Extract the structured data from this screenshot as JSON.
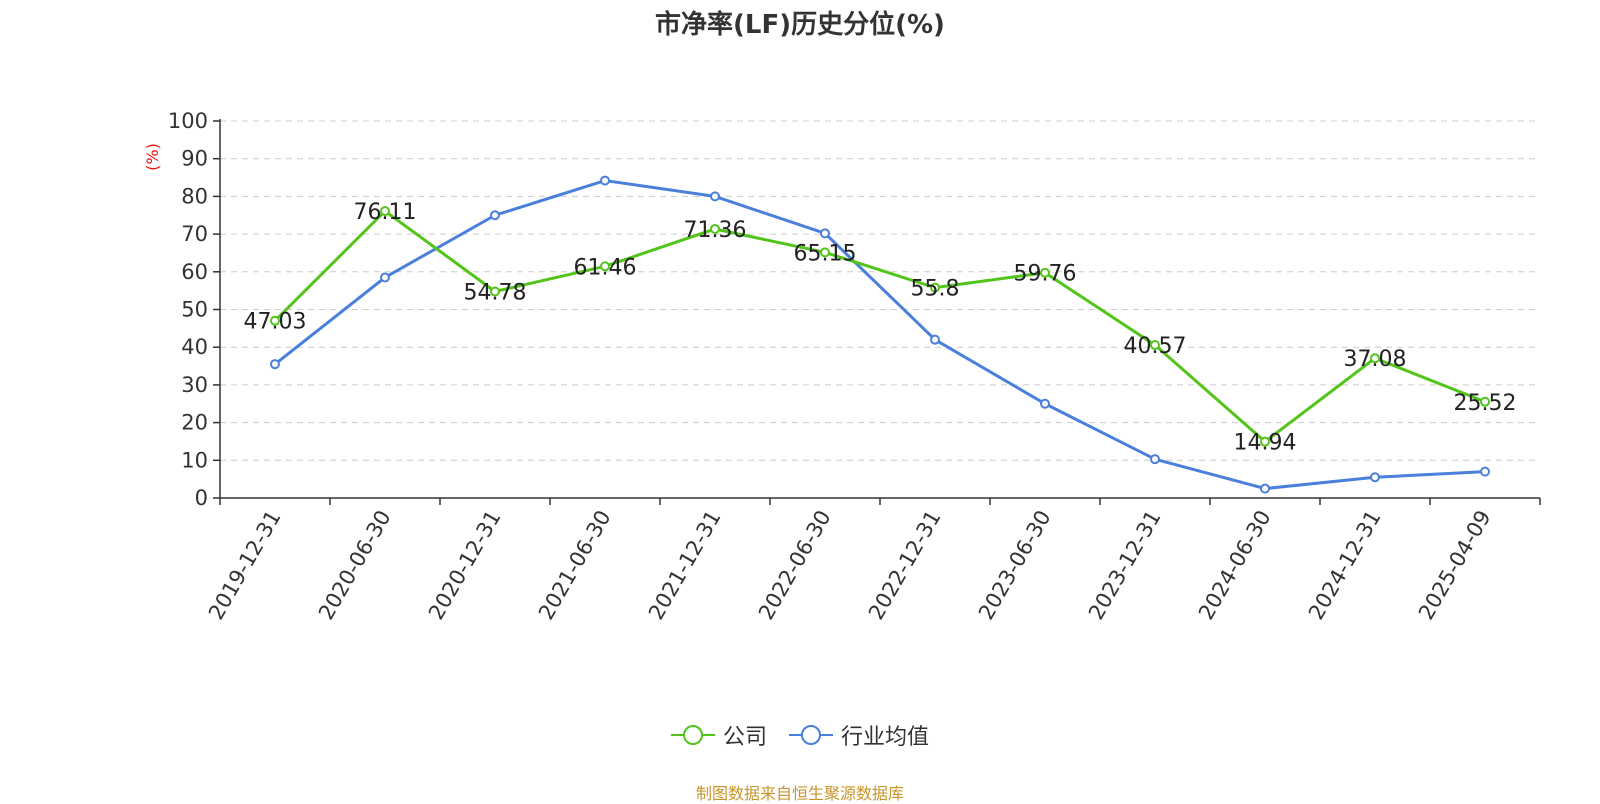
{
  "chart_data": {
    "type": "line",
    "title": "市净率(LF)历史分位(%)",
    "ylabel": "(%)",
    "ylim": [
      0,
      100
    ],
    "yticks": [
      0,
      10,
      20,
      30,
      40,
      50,
      60,
      70,
      80,
      90,
      100
    ],
    "grid": true,
    "legend_position": "bottom-center",
    "categories": [
      "2019-12-31",
      "2020-06-30",
      "2020-12-31",
      "2021-06-30",
      "2021-12-31",
      "2022-06-30",
      "2022-12-31",
      "2023-06-30",
      "2023-12-31",
      "2024-06-30",
      "2024-12-31",
      "2025-04-09"
    ],
    "series": [
      {
        "name": "公司",
        "color": "#52c41a",
        "show_labels": true,
        "values": [
          47.03,
          76.11,
          54.78,
          61.46,
          71.36,
          65.15,
          55.8,
          59.76,
          40.57,
          14.94,
          37.08,
          25.52
        ]
      },
      {
        "name": "行业均值",
        "color": "#4a7fdc",
        "show_labels": false,
        "values": [
          35.5,
          58.5,
          75.0,
          84.2,
          80.0,
          70.2,
          42.0,
          25.0,
          10.3,
          2.5,
          5.5,
          7.0
        ]
      }
    ]
  },
  "footer": {
    "source": "制图数据来自恒生聚源数据库"
  }
}
